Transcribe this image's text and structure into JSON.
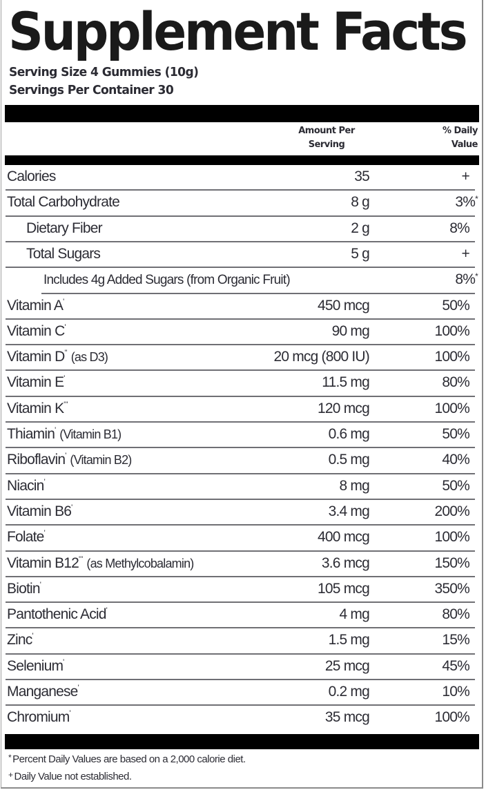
{
  "label": {
    "title": "Supplement Facts",
    "serving_size": "Serving Size 4 Gummies (10g)",
    "servings_per_container": "Servings Per Container 30",
    "header": {
      "amount_line1": "Amount Per",
      "amount_line2": "Serving",
      "dv_line1": "% Daily",
      "dv_line2": "Value"
    },
    "rows": [
      {
        "name": "Calories",
        "mark": "",
        "qualifier": "",
        "amount": "35",
        "dv": "+",
        "dv_mark": "",
        "indent": 0
      },
      {
        "name": "Total Carbohydrate",
        "mark": "",
        "qualifier": "",
        "amount": "8 g",
        "dv": "3%",
        "dv_mark": "*",
        "indent": 0
      },
      {
        "name": "Dietary Fiber",
        "mark": "",
        "qualifier": "",
        "amount": "2 g",
        "dv": "8%",
        "dv_mark": "",
        "indent": 1
      },
      {
        "name": "Total Sugars",
        "mark": "",
        "qualifier": "",
        "amount": "5 g",
        "dv": "+",
        "dv_mark": "",
        "indent": 1
      },
      {
        "name": "Includes 4g Added Sugars (from Organic Fruit)",
        "mark": "",
        "qualifier": "",
        "amount": "",
        "dv": "8%",
        "dv_mark": "*",
        "indent": 2
      },
      {
        "name": "Vitamin A",
        "mark": "'",
        "qualifier": "",
        "amount": "450 mcg",
        "dv": "50%",
        "dv_mark": "",
        "indent": 0
      },
      {
        "name": "Vitamin C",
        "mark": "'",
        "qualifier": "",
        "amount": "90 mg",
        "dv": "100%",
        "dv_mark": "",
        "indent": 0
      },
      {
        "name": "Vitamin D",
        "mark": "''",
        "qualifier": "(as D3)",
        "amount": "20 mcg (800 IU)",
        "dv": "100%",
        "dv_mark": "",
        "indent": 0
      },
      {
        "name": "Vitamin E",
        "mark": "'",
        "qualifier": "",
        "amount": "11.5 mg",
        "dv": "80%",
        "dv_mark": "",
        "indent": 0
      },
      {
        "name": "Vitamin K",
        "mark": "'''",
        "qualifier": "",
        "amount": "120 mcg",
        "dv": "100%",
        "dv_mark": "",
        "indent": 0
      },
      {
        "name": "Thiamin",
        "mark": "'",
        "qualifier": "(Vitamin B1)",
        "amount": "0.6 mg",
        "dv": "50%",
        "dv_mark": "",
        "indent": 0
      },
      {
        "name": "Riboflavin",
        "mark": "'",
        "qualifier": "(Vitamin B2)",
        "amount": "0.5 mg",
        "dv": "40%",
        "dv_mark": "",
        "indent": 0
      },
      {
        "name": "Niacin",
        "mark": "'",
        "qualifier": "",
        "amount": "8 mg",
        "dv": "50%",
        "dv_mark": "",
        "indent": 0
      },
      {
        "name": "Vitamin B6",
        "mark": "'",
        "qualifier": "",
        "amount": "3.4 mg",
        "dv": "200%",
        "dv_mark": "",
        "indent": 0
      },
      {
        "name": "Folate",
        "mark": "'",
        "qualifier": "",
        "amount": "400 mcg",
        "dv": "100%",
        "dv_mark": "",
        "indent": 0
      },
      {
        "name": "Vitamin B12",
        "mark": "'''",
        "qualifier": "(as Methylcobalamin)",
        "amount": "3.6 mcg",
        "dv": "150%",
        "dv_mark": "",
        "indent": 0
      },
      {
        "name": "Biotin",
        "mark": "'",
        "qualifier": "",
        "amount": "105 mcg",
        "dv": "350%",
        "dv_mark": "",
        "indent": 0
      },
      {
        "name": "Pantothenic Acid",
        "mark": "'",
        "qualifier": "",
        "amount": "4 mg",
        "dv": "80%",
        "dv_mark": "",
        "indent": 0
      },
      {
        "name": "Zinc",
        "mark": "'",
        "qualifier": "",
        "amount": "1.5 mg",
        "dv": "15%",
        "dv_mark": "",
        "indent": 0
      },
      {
        "name": "Selenium",
        "mark": "'",
        "qualifier": "",
        "amount": "25 mcg",
        "dv": "45%",
        "dv_mark": "",
        "indent": 0
      },
      {
        "name": "Manganese",
        "mark": "'",
        "qualifier": "",
        "amount": "0.2 mg",
        "dv": "10%",
        "dv_mark": "",
        "indent": 0
      },
      {
        "name": "Chromium",
        "mark": "'",
        "qualifier": "",
        "amount": "35 mcg",
        "dv": "100%",
        "dv_mark": "",
        "indent": 0
      }
    ],
    "footnotes": [
      {
        "symbol": "*",
        "text": "Percent Daily Values are based on a 2,000 calorie diet."
      },
      {
        "symbol": "+",
        "text": "Daily Value not established."
      }
    ]
  }
}
